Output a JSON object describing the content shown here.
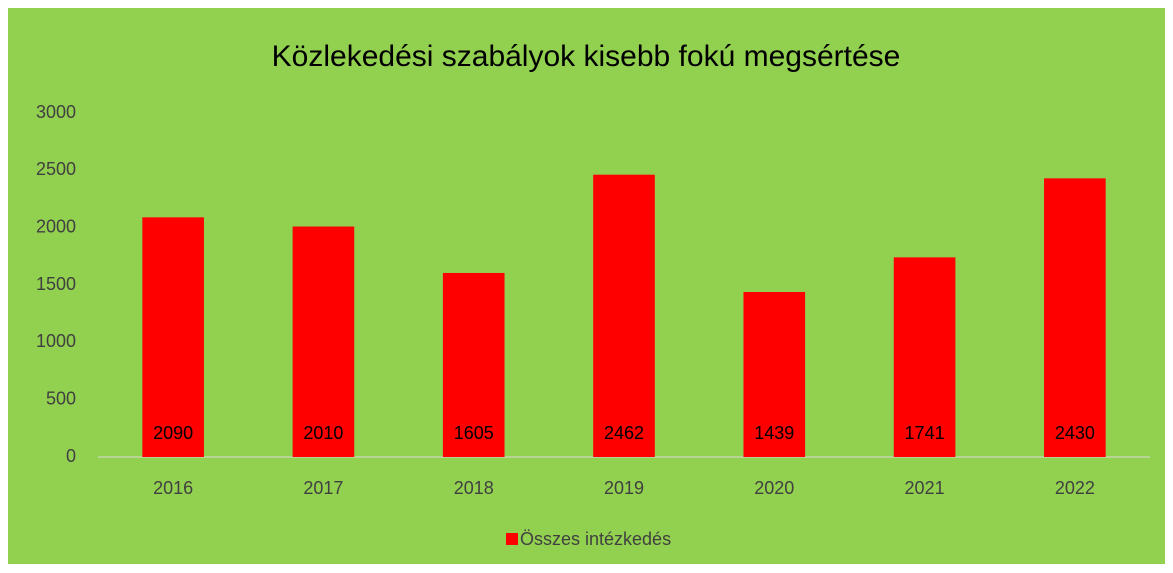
{
  "chart_data": {
    "type": "bar",
    "title": "Közlekedési szabályok kisebb fokú megsértése",
    "categories": [
      "2016",
      "2017",
      "2018",
      "2019",
      "2020",
      "2021",
      "2022"
    ],
    "series": [
      {
        "name": "Összes intézkedés",
        "color": "#ff0000",
        "values": [
          2090,
          2010,
          1605,
          2462,
          1439,
          1741,
          2430
        ]
      }
    ],
    "ylim": [
      0,
      3000
    ],
    "yticks": [
      0,
      500,
      1000,
      1500,
      2000,
      2500,
      3000
    ],
    "grid": false,
    "legend": "bottom",
    "background": "#92d050"
  }
}
